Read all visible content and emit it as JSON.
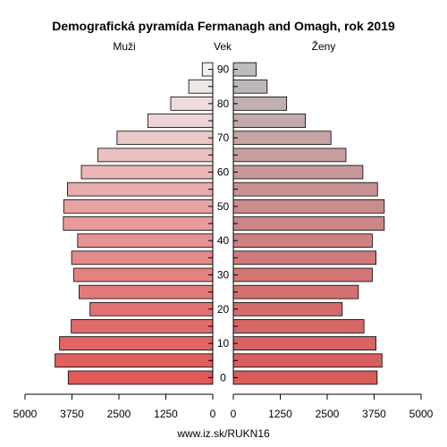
{
  "chart_data": {
    "type": "bar",
    "subtype": "population-pyramid",
    "title": "Demografická pyramída Fermanagh and Omagh, rok 2019",
    "left_label": "Muži",
    "center_label": "Vek",
    "right_label": "Ženy",
    "footer": "www.iz.sk/RUKN16",
    "age_groups": [
      "0",
      "5",
      "10",
      "15",
      "20",
      "25",
      "30",
      "35",
      "40",
      "45",
      "50",
      "55",
      "60",
      "65",
      "70",
      "75",
      "80",
      "85",
      "90"
    ],
    "age_tick_labels": [
      "0",
      "10",
      "20",
      "30",
      "40",
      "50",
      "60",
      "70",
      "80",
      "90"
    ],
    "x_ticks_left": [
      "5000",
      "3750",
      "2500",
      "1250",
      "0"
    ],
    "x_ticks_right": [
      "0",
      "1250",
      "2500",
      "3750",
      "5000"
    ],
    "xlim": [
      0,
      5000
    ],
    "series": [
      {
        "name": "Muži",
        "values": [
          3850,
          4200,
          4080,
          3770,
          3270,
          3560,
          3700,
          3760,
          3600,
          3980,
          3970,
          3870,
          3500,
          3060,
          2550,
          1730,
          1120,
          640,
          280
        ]
      },
      {
        "name": "Ženy",
        "values": [
          3830,
          3960,
          3800,
          3480,
          2900,
          3330,
          3700,
          3800,
          3700,
          4020,
          4020,
          3840,
          3450,
          3000,
          2600,
          1920,
          1420,
          900,
          610
        ]
      }
    ],
    "colors": {
      "male_base": "#e05a5a",
      "male_top": "#f0f0f0",
      "female_base": "#d95c5c",
      "female_top": "#bdbdbd",
      "stroke": "#000000"
    }
  }
}
